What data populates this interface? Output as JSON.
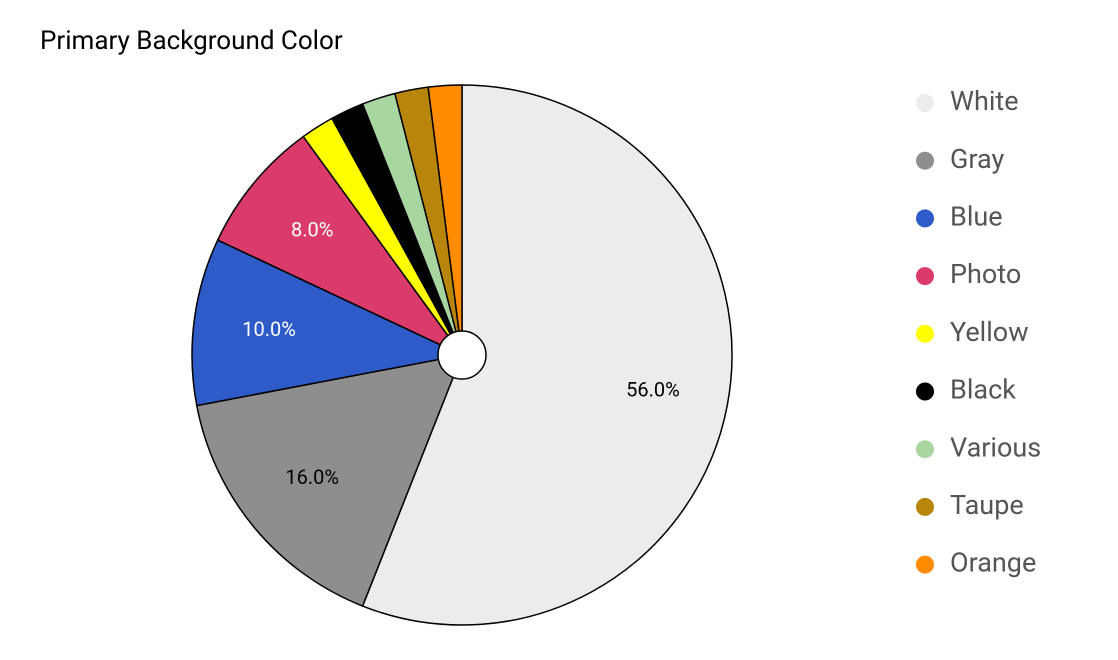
{
  "chart_data": {
    "type": "pie",
    "title": "Primary Background Color",
    "categories": [
      "White",
      "Gray",
      "Blue",
      "Photo",
      "Yellow",
      "Black",
      "Various",
      "Taupe",
      "Orange"
    ],
    "values": [
      56,
      16,
      10,
      8,
      2,
      2,
      2,
      2,
      2
    ],
    "value_labels": [
      "56.0%",
      "16.0%",
      "10.0%",
      "8.0%",
      null,
      null,
      null,
      null,
      null
    ],
    "colors": [
      "#ececec",
      "#8e8e8e",
      "#2e5bc7",
      "#da3b6a",
      "#ffff00",
      "#000000",
      "#a8d5a0",
      "#b8860b",
      "#ff8c00"
    ],
    "legend": "right"
  }
}
